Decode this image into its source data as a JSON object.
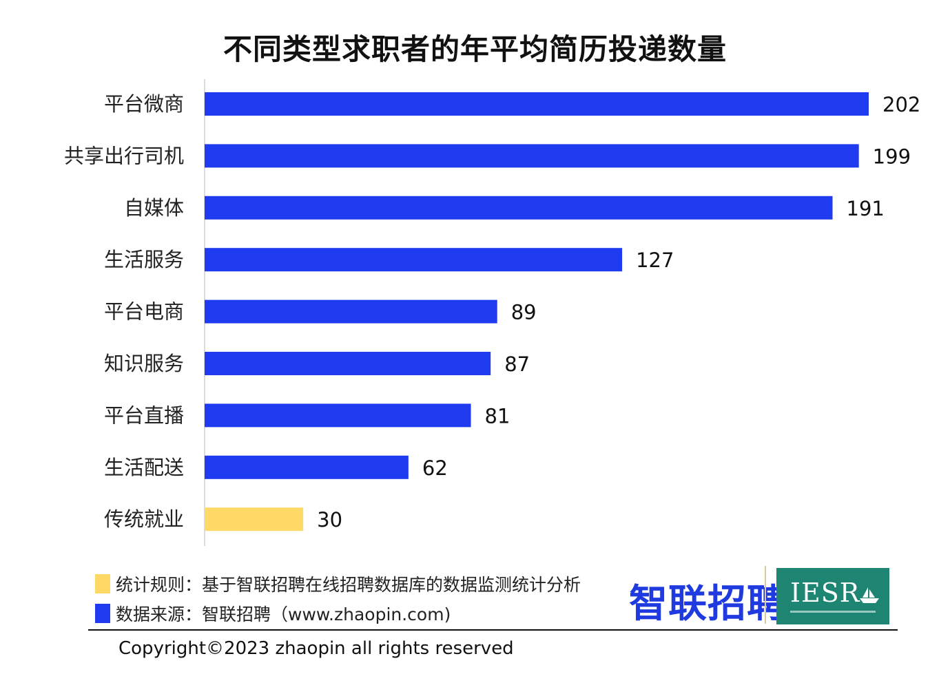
{
  "chart_data": {
    "type": "bar",
    "orientation": "horizontal",
    "title": "不同类型求职者的年平均简历投递数量",
    "categories": [
      "平台微商",
      "共享出行司机",
      "自媒体",
      "生活服务",
      "平台电商",
      "知识服务",
      "平台直播",
      "生活配送",
      "传统就业"
    ],
    "values": [
      202,
      199,
      191,
      127,
      89,
      87,
      81,
      62,
      30
    ],
    "data_labels": [
      "202",
      "199",
      "191",
      "127",
      "89",
      "87",
      "81",
      "62",
      "30"
    ],
    "bar_colors": [
      "#1f3bef",
      "#1f3bef",
      "#1f3bef",
      "#1f3bef",
      "#1f3bef",
      "#1f3bef",
      "#1f3bef",
      "#1f3bef",
      "#ffd966"
    ],
    "xlim": [
      0,
      202
    ],
    "grid": false,
    "xlabel": "",
    "ylabel": ""
  },
  "legend": {
    "items": [
      {
        "label": "统计规则：基于智联招聘在线招聘数据库的数据监测统计分析",
        "color": "#ffd966"
      },
      {
        "label": "数据来源：智联招聘（www.zhaopin.com)",
        "color": "#1f3bef"
      }
    ]
  },
  "logos": {
    "zhaopin": "智联招聘",
    "iesr": "IESR"
  },
  "footer": {
    "copyright": "Copyright©2023 zhaopin all rights reserved"
  }
}
